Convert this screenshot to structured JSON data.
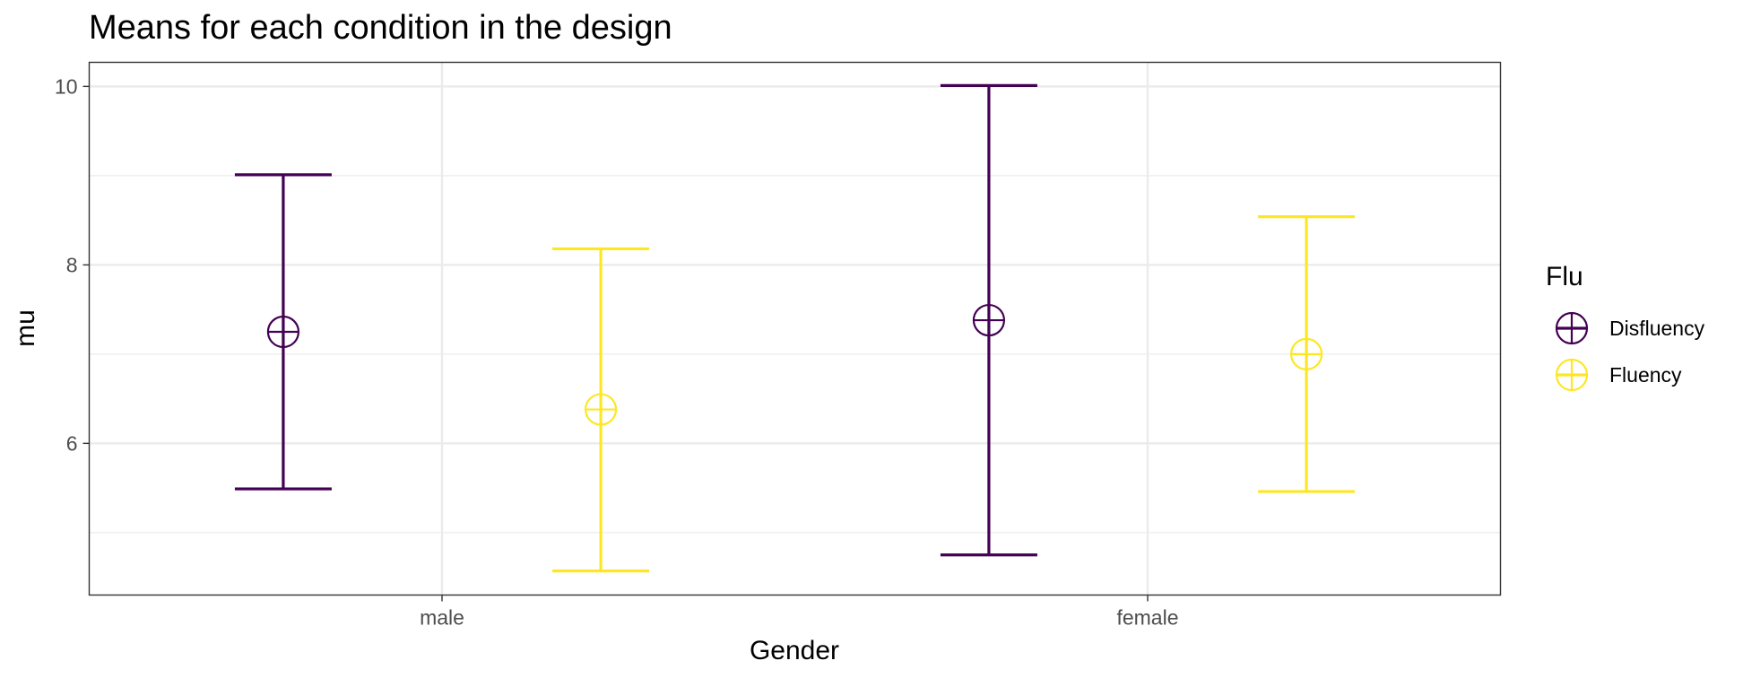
{
  "chart_data": {
    "type": "errorbar",
    "title": "Means for each condition in the design",
    "xlabel": "Gender",
    "ylabel": "mu",
    "categories": [
      "male",
      "female"
    ],
    "ylim": [
      4.3,
      10.27
    ],
    "yticks": [
      6,
      8,
      10
    ],
    "grid": true,
    "legend": {
      "title": "Flu",
      "position": "right"
    },
    "series": [
      {
        "name": "Disfluency",
        "color": "#440154",
        "values": [
          {
            "category": "male",
            "mean": 7.25,
            "lower": 5.49,
            "upper": 9.01
          },
          {
            "category": "female",
            "mean": 7.38,
            "lower": 4.75,
            "upper": 10.01
          }
        ]
      },
      {
        "name": "Fluency",
        "color": "#fde725",
        "values": [
          {
            "category": "male",
            "mean": 6.38,
            "lower": 4.57,
            "upper": 8.18
          },
          {
            "category": "female",
            "mean": 7.0,
            "lower": 5.46,
            "upper": 8.54
          }
        ]
      }
    ]
  }
}
